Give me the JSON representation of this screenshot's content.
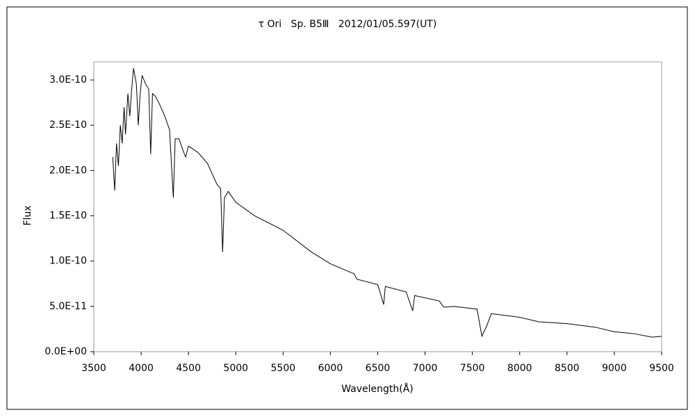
{
  "chart_data": {
    "type": "line",
    "title": "τ Ori   Sp. B5Ⅲ   2012/01/05.597(UT)",
    "x_label": "Wavelength(Å)",
    "y_label": "Flux",
    "x": [
      3700,
      3720,
      3740,
      3760,
      3780,
      3800,
      3820,
      3835,
      3860,
      3880,
      3900,
      3920,
      3950,
      3970,
      3990,
      4010,
      4050,
      4080,
      4101,
      4120,
      4150,
      4200,
      4250,
      4300,
      4340,
      4360,
      4400,
      4450,
      4470,
      4500,
      4600,
      4700,
      4800,
      4840,
      4861,
      4880,
      4920,
      5000,
      5200,
      5500,
      5800,
      6000,
      6250,
      6280,
      6500,
      6563,
      6580,
      6800,
      6870,
      6890,
      7150,
      7200,
      7300,
      7550,
      7600,
      7650,
      7700,
      8000,
      8200,
      8500,
      8800,
      9000,
      9200,
      9400,
      9500
    ],
    "values": [
      2.15e-10,
      1.78e-10,
      2.3e-10,
      2.05e-10,
      2.5e-10,
      2.3e-10,
      2.7e-10,
      2.4e-10,
      2.85e-10,
      2.6e-10,
      2.9e-10,
      3.13e-10,
      2.95e-10,
      2.5e-10,
      2.85e-10,
      3.05e-10,
      2.95e-10,
      2.9e-10,
      2.18e-10,
      2.85e-10,
      2.82e-10,
      2.72e-10,
      2.6e-10,
      2.45e-10,
      1.7e-10,
      2.35e-10,
      2.35e-10,
      2.2e-10,
      2.15e-10,
      2.27e-10,
      2.2e-10,
      2.08e-10,
      1.85e-10,
      1.8e-10,
      1.1e-10,
      1.7e-10,
      1.77e-10,
      1.65e-10,
      1.5e-10,
      1.34e-10,
      1.1e-10,
      9.7e-11,
      8.6e-11,
      8e-11,
      7.4e-11,
      5.2e-11,
      7.2e-11,
      6.6e-11,
      4.5e-11,
      6.2e-11,
      5.6e-11,
      4.9e-11,
      5e-11,
      4.7e-11,
      1.7e-11,
      2.8e-11,
      4.2e-11,
      3.8e-11,
      3.3e-11,
      3.1e-11,
      2.7e-11,
      2.2e-11,
      2e-11,
      1.6e-11,
      1.7e-11
    ],
    "color": "#000000",
    "xlim": [
      3500,
      9500
    ],
    "xticks": [
      3500,
      4000,
      4500,
      5000,
      5500,
      6000,
      6500,
      7000,
      7500,
      8000,
      8500,
      9000,
      9500
    ],
    "ylim": [
      0,
      3.2e-10
    ],
    "yticks": [
      {
        "value": 0,
        "label": "0.0E+00"
      },
      {
        "value": 5e-11,
        "label": "5.0E-11"
      },
      {
        "value": 1e-10,
        "label": "1.0E-10"
      },
      {
        "value": 1.5e-10,
        "label": "1.5E-10"
      },
      {
        "value": 2e-10,
        "label": "2.0E-10"
      },
      {
        "value": 2.5e-10,
        "label": "2.5E-10"
      },
      {
        "value": 3e-10,
        "label": "3.0E-10"
      }
    ],
    "grid": false
  }
}
